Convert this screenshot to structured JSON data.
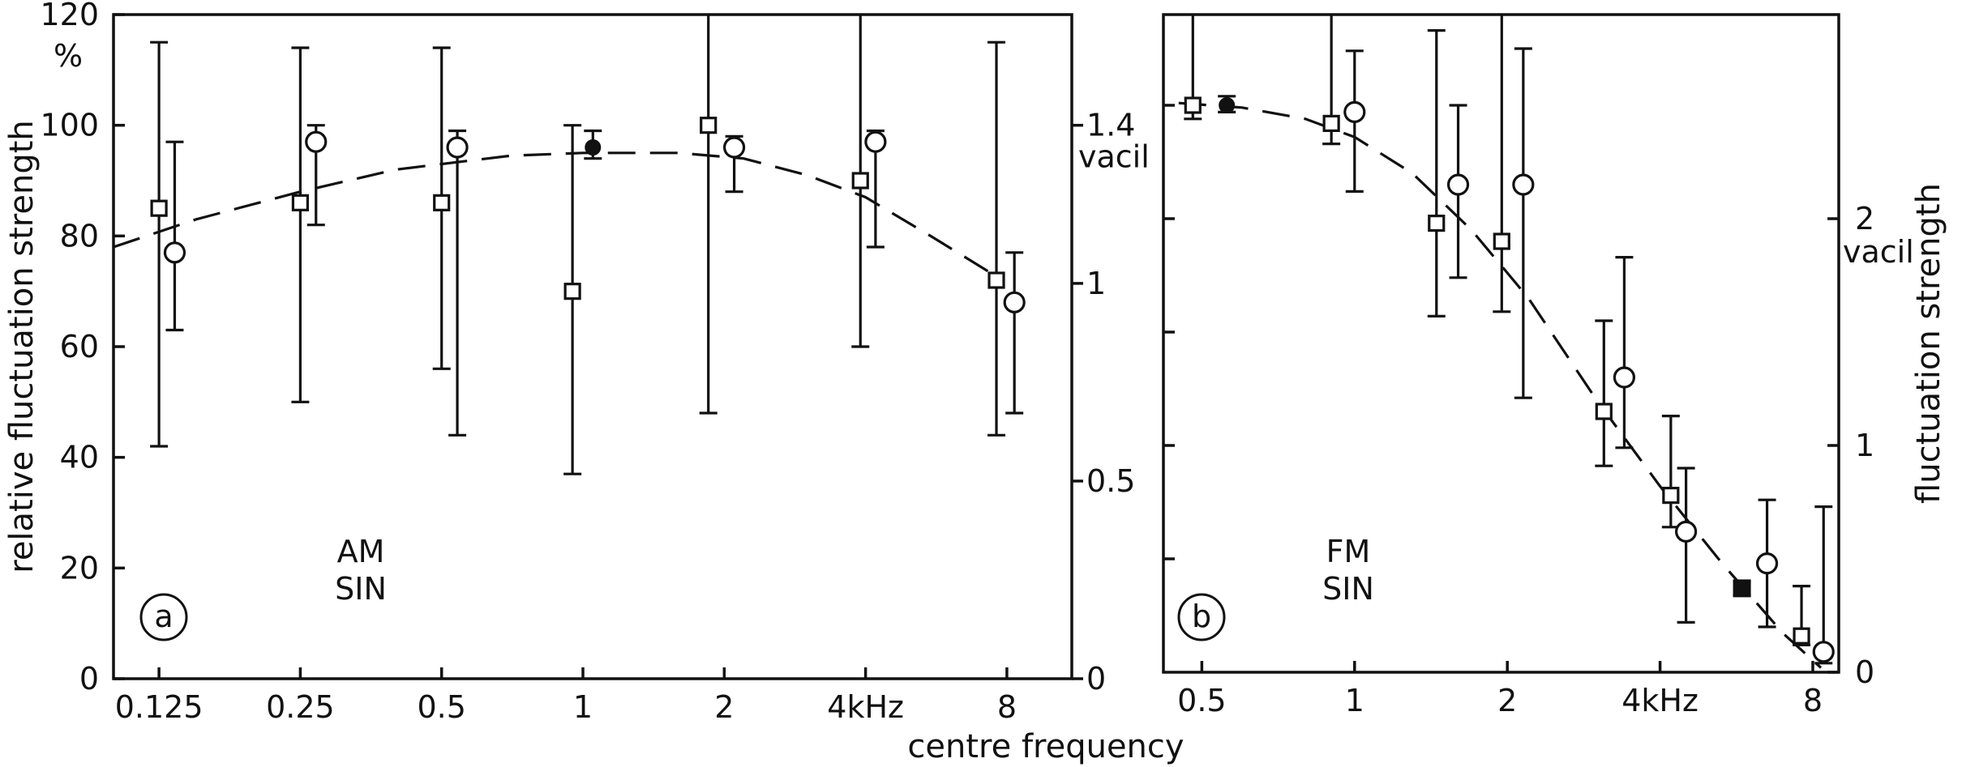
{
  "xlabel": "centre frequency",
  "chart_data": [
    {
      "type": "scatter",
      "panel": "a",
      "panel_label": "a",
      "annotation": [
        "AM",
        "SIN"
      ],
      "ylabel": "relative fluctuation strength",
      "ylabel_unit": "%",
      "ylim": [
        0,
        120
      ],
      "yticks": [
        0,
        20,
        40,
        60,
        80,
        100,
        120
      ],
      "ytick_labels": [
        "0",
        "20",
        "40",
        "60",
        "80",
        "100",
        "120"
      ],
      "right_axis": {
        "label": "vacil",
        "ticks": [
          0,
          0.5,
          1,
          1.4
        ],
        "tick_labels": [
          "0",
          "0.5",
          "1",
          "1.4"
        ]
      },
      "x_scale": "log2",
      "xlim": [
        0.1,
        11
      ],
      "xticks": [
        0.125,
        0.25,
        0.5,
        1,
        2,
        4,
        8
      ],
      "xtick_labels": [
        "0.125",
        "0.25",
        "0.5",
        "1",
        "2",
        "4kHz",
        "8"
      ],
      "series": [
        {
          "marker": "square",
          "points": [
            {
              "x": 0.125,
              "y": 85,
              "low": 42,
              "high": 115
            },
            {
              "x": 0.25,
              "y": 86,
              "low": 50,
              "high": 114
            },
            {
              "x": 0.5,
              "y": 86,
              "low": 56,
              "high": 114
            },
            {
              "x": 0.95,
              "y": 70,
              "low": 37,
              "high": 100
            },
            {
              "x": 1.85,
              "y": 100,
              "low": 48,
              "high": 120
            },
            {
              "x": 3.9,
              "y": 90,
              "low": 60,
              "high": 120
            },
            {
              "x": 7.6,
              "y": 72,
              "low": 44,
              "high": 115
            }
          ]
        },
        {
          "marker": "circle",
          "points": [
            {
              "x": 0.135,
              "y": 77,
              "low": 63,
              "high": 97
            },
            {
              "x": 0.27,
              "y": 97,
              "low": 82,
              "high": 100
            },
            {
              "x": 0.54,
              "y": 96,
              "low": 44,
              "high": 99
            },
            {
              "x": 2.1,
              "y": 96,
              "low": 88,
              "high": 98
            },
            {
              "x": 4.2,
              "y": 97,
              "low": 78,
              "high": 99
            },
            {
              "x": 8.3,
              "y": 68,
              "low": 48,
              "high": 77
            }
          ]
        },
        {
          "marker": "filled-circle",
          "points": [
            {
              "x": 1.05,
              "y": 96,
              "low": 94,
              "high": 99
            }
          ]
        }
      ],
      "fit_curve": [
        {
          "x": 0.1,
          "y": 78
        },
        {
          "x": 0.15,
          "y": 83
        },
        {
          "x": 0.25,
          "y": 88
        },
        {
          "x": 0.4,
          "y": 92
        },
        {
          "x": 0.7,
          "y": 94.5
        },
        {
          "x": 1.0,
          "y": 95
        },
        {
          "x": 1.6,
          "y": 95
        },
        {
          "x": 2.2,
          "y": 94
        },
        {
          "x": 3.0,
          "y": 91
        },
        {
          "x": 4.0,
          "y": 87
        },
        {
          "x": 5.5,
          "y": 80
        },
        {
          "x": 7.5,
          "y": 73
        }
      ]
    },
    {
      "type": "scatter",
      "panel": "b",
      "panel_label": "b",
      "annotation": [
        "FM",
        "SIN"
      ],
      "ylabel": "fluctuation strength",
      "ylim": [
        0,
        2.9
      ],
      "yticks": [
        0,
        1,
        2
      ],
      "ytick_labels": [
        "0",
        "1",
        "2"
      ],
      "yunit_label": "vacil",
      "x_scale": "log2",
      "xlim": [
        0.42,
        9
      ],
      "xticks": [
        0.5,
        1,
        2,
        4,
        8
      ],
      "xtick_labels": [
        "0.5",
        "1",
        "2",
        "4kHz",
        "8"
      ],
      "series": [
        {
          "marker": "square",
          "points": [
            {
              "x": 0.48,
              "y": 2.5,
              "low": 2.44,
              "high": 2.9
            },
            {
              "x": 0.9,
              "y": 2.42,
              "low": 2.33,
              "high": 2.9
            },
            {
              "x": 1.45,
              "y": 1.98,
              "low": 1.57,
              "high": 2.83
            },
            {
              "x": 1.95,
              "y": 1.9,
              "low": 1.59,
              "high": 2.9
            },
            {
              "x": 3.1,
              "y": 1.15,
              "low": 0.91,
              "high": 1.55
            },
            {
              "x": 4.2,
              "y": 0.78,
              "low": 0.64,
              "high": 1.13
            },
            {
              "x": 7.6,
              "y": 0.16,
              "low": 0.12,
              "high": 0.38
            }
          ]
        },
        {
          "marker": "circle",
          "points": [
            {
              "x": 1.0,
              "y": 2.47,
              "low": 2.12,
              "high": 2.74
            },
            {
              "x": 1.6,
              "y": 2.15,
              "low": 1.74,
              "high": 2.5
            },
            {
              "x": 2.15,
              "y": 2.15,
              "low": 1.21,
              "high": 2.75
            },
            {
              "x": 3.4,
              "y": 1.3,
              "low": 0.99,
              "high": 1.83
            },
            {
              "x": 4.5,
              "y": 0.62,
              "low": 0.22,
              "high": 0.9
            },
            {
              "x": 6.5,
              "y": 0.48,
              "low": 0.2,
              "high": 0.76
            },
            {
              "x": 8.4,
              "y": 0.09,
              "low": 0.04,
              "high": 0.73
            }
          ]
        },
        {
          "marker": "filled-circle",
          "points": [
            {
              "x": 0.56,
              "y": 2.5,
              "low": 2.47,
              "high": 2.54
            }
          ]
        },
        {
          "marker": "filled-square",
          "points": [
            {
              "x": 5.8,
              "y": 0.37,
              "low": 0.34,
              "high": 0.4
            }
          ]
        }
      ],
      "fit_curve": [
        {
          "x": 0.45,
          "y": 2.51
        },
        {
          "x": 0.6,
          "y": 2.49
        },
        {
          "x": 0.8,
          "y": 2.44
        },
        {
          "x": 1.0,
          "y": 2.36
        },
        {
          "x": 1.3,
          "y": 2.2
        },
        {
          "x": 1.7,
          "y": 1.95
        },
        {
          "x": 2.2,
          "y": 1.65
        },
        {
          "x": 3.0,
          "y": 1.2
        },
        {
          "x": 4.0,
          "y": 0.82
        },
        {
          "x": 5.3,
          "y": 0.48
        },
        {
          "x": 7.0,
          "y": 0.17
        },
        {
          "x": 8.3,
          "y": 0.02
        }
      ]
    }
  ]
}
